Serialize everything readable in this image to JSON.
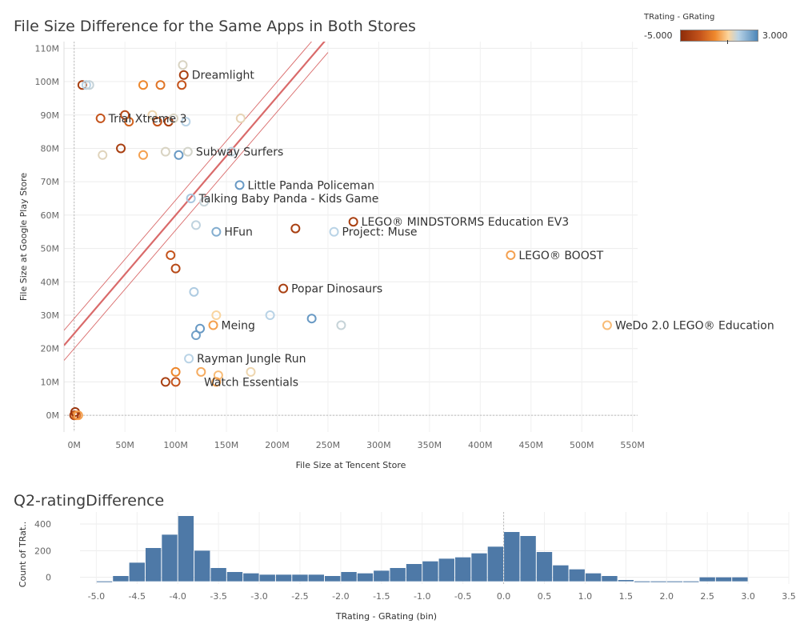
{
  "scatter": {
    "title": "File Size Difference for the Same Apps in Both Stores",
    "legend": {
      "title": "TRating - GRating",
      "min": "-5.000",
      "max": "3.000"
    }
  },
  "histogram": {
    "title": "Q2-ratingDifference"
  },
  "colors": {
    "rating_scale": [
      "#8e2c09",
      "#c4531b",
      "#f08a2e",
      "#fcd59d",
      "#b9d3e6",
      "#4d86b8"
    ],
    "trend": "#d96a6a",
    "bar": "#4e79a7"
  },
  "chart_data": [
    {
      "type": "scatter",
      "title": "File Size Difference for the Same Apps in Both Stores",
      "xlabel": "File Size at Tencent Store",
      "ylabel": "File Size at Google Play Store",
      "xlim": [
        -10,
        555
      ],
      "ylim": [
        -5,
        112
      ],
      "x_ticks": [
        0,
        50,
        100,
        150,
        200,
        250,
        300,
        350,
        400,
        450,
        500,
        550
      ],
      "x_tick_labels": [
        "0M",
        "50M",
        "100M",
        "150M",
        "200M",
        "250M",
        "300M",
        "350M",
        "400M",
        "450M",
        "500M",
        "550M"
      ],
      "y_ticks": [
        0,
        10,
        20,
        30,
        40,
        50,
        60,
        70,
        80,
        90,
        100,
        110
      ],
      "y_tick_labels": [
        "0M",
        "10M",
        "20M",
        "30M",
        "40M",
        "50M",
        "60M",
        "70M",
        "80M",
        "90M",
        "100M",
        "110M"
      ],
      "grid": true,
      "color_field": "TRating - GRating",
      "color_range": [
        -5.0,
        3.0
      ],
      "trend_line": {
        "slope": 0.355,
        "intercept": 24.5
      },
      "points": [
        {
          "x": 107,
          "y": 105,
          "rating": 0.5
        },
        {
          "x": 108,
          "y": 102,
          "rating": -4.0
        },
        {
          "x": 106,
          "y": 99,
          "rating": -3.0
        },
        {
          "x": 68,
          "y": 99,
          "rating": -1.5
        },
        {
          "x": 85,
          "y": 99,
          "rating": -2.0
        },
        {
          "x": 8,
          "y": 99,
          "rating": -4.0
        },
        {
          "x": 12,
          "y": 99,
          "rating": 1.0
        },
        {
          "x": 15,
          "y": 99,
          "rating": 0.8
        },
        {
          "x": 26,
          "y": 89,
          "rating": -3.0
        },
        {
          "x": 50,
          "y": 90,
          "rating": -3.5
        },
        {
          "x": 54,
          "y": 88,
          "rating": -2.5
        },
        {
          "x": 77,
          "y": 90,
          "rating": 0.2
        },
        {
          "x": 82,
          "y": 88,
          "rating": -3.0
        },
        {
          "x": 93,
          "y": 88,
          "rating": -4.0
        },
        {
          "x": 98,
          "y": 89,
          "rating": 0.5
        },
        {
          "x": 110,
          "y": 88,
          "rating": 1.0
        },
        {
          "x": 164,
          "y": 89,
          "rating": 0.3
        },
        {
          "x": 28,
          "y": 78,
          "rating": 0.4
        },
        {
          "x": 46,
          "y": 80,
          "rating": -4.0
        },
        {
          "x": 68,
          "y": 78,
          "rating": -1.0
        },
        {
          "x": 90,
          "y": 79,
          "rating": 0.5
        },
        {
          "x": 103,
          "y": 78,
          "rating": 2.5
        },
        {
          "x": 112,
          "y": 79,
          "rating": 0.6
        },
        {
          "x": 155,
          "y": 79,
          "rating": 0.9
        },
        {
          "x": 163,
          "y": 69,
          "rating": 2.5
        },
        {
          "x": 115,
          "y": 65,
          "rating": 1.3
        },
        {
          "x": 128,
          "y": 64,
          "rating": 0.8
        },
        {
          "x": 120,
          "y": 57,
          "rating": 0.9
        },
        {
          "x": 140,
          "y": 55,
          "rating": 2.0
        },
        {
          "x": 275,
          "y": 58,
          "rating": -4.0
        },
        {
          "x": 218,
          "y": 56,
          "rating": -4.0
        },
        {
          "x": 256,
          "y": 55,
          "rating": 1.0
        },
        {
          "x": 430,
          "y": 48,
          "rating": -1.0
        },
        {
          "x": 95,
          "y": 48,
          "rating": -3.0
        },
        {
          "x": 100,
          "y": 44,
          "rating": -3.5
        },
        {
          "x": 118,
          "y": 37,
          "rating": 1.2
        },
        {
          "x": 206,
          "y": 38,
          "rating": -4.0
        },
        {
          "x": 193,
          "y": 30,
          "rating": 1.0
        },
        {
          "x": 234,
          "y": 29,
          "rating": 2.5
        },
        {
          "x": 263,
          "y": 27,
          "rating": 0.8
        },
        {
          "x": 525,
          "y": 27,
          "rating": -0.5
        },
        {
          "x": 140,
          "y": 30,
          "rating": 0.0
        },
        {
          "x": 137,
          "y": 27,
          "rating": -1.0
        },
        {
          "x": 120,
          "y": 24,
          "rating": 2.3
        },
        {
          "x": 124,
          "y": 26,
          "rating": 2.5
        },
        {
          "x": 113,
          "y": 17,
          "rating": 1.0
        },
        {
          "x": 142,
          "y": 12,
          "rating": -0.5
        },
        {
          "x": 174,
          "y": 13,
          "rating": 0.2
        },
        {
          "x": 125,
          "y": 13,
          "rating": -0.8
        },
        {
          "x": 100,
          "y": 13,
          "rating": -1.5
        },
        {
          "x": 90,
          "y": 10,
          "rating": -4.0
        },
        {
          "x": 100,
          "y": 10,
          "rating": -3.0
        },
        {
          "x": 140,
          "y": 10,
          "rating": -1.0
        },
        {
          "x": 0,
          "y": 0,
          "rating": -4.0
        },
        {
          "x": 2,
          "y": 0,
          "rating": -2.0
        },
        {
          "x": 1,
          "y": 1,
          "rating": -4.5
        },
        {
          "x": 4,
          "y": 0,
          "rating": -1.0
        }
      ],
      "annotations": [
        {
          "label": "Dreamlight",
          "x": 108,
          "y": 102
        },
        {
          "label": "Trial Xtreme 3",
          "x": 26,
          "y": 89
        },
        {
          "label": "Subway Surfers",
          "x": 112,
          "y": 79
        },
        {
          "label": "Little Panda Policeman",
          "x": 163,
          "y": 69
        },
        {
          "label": "Talking Baby Panda - Kids Game",
          "x": 115,
          "y": 65
        },
        {
          "label": "LEGO® MINDSTORMS Education EV3",
          "x": 275,
          "y": 58
        },
        {
          "label": "HFun",
          "x": 140,
          "y": 55
        },
        {
          "label": "Project: Muse",
          "x": 256,
          "y": 55
        },
        {
          "label": "LEGO® BOOST",
          "x": 430,
          "y": 48
        },
        {
          "label": "Popar Dinosaurs",
          "x": 206,
          "y": 38
        },
        {
          "label": "Meing",
          "x": 137,
          "y": 27
        },
        {
          "label": "WeDo 2.0 LEGO® Education",
          "x": 525,
          "y": 27
        },
        {
          "label": "Rayman Jungle Run",
          "x": 113,
          "y": 17
        },
        {
          "label": "Watch Essentials",
          "x": 120,
          "y": 10
        }
      ]
    },
    {
      "type": "bar",
      "title": "Q2-ratingDifference",
      "xlabel": "TRating - GRating (bin)",
      "ylabel": "Count of TRat..",
      "bin_width": 0.2,
      "xlim": [
        -5.2,
        3.5
      ],
      "x_ticks": [
        -5.0,
        -4.5,
        -4.0,
        -3.5,
        -3.0,
        -2.5,
        -2.0,
        -1.5,
        -1.0,
        -0.5,
        0.0,
        0.5,
        1.0,
        1.5,
        2.0,
        2.5,
        3.0,
        3.5
      ],
      "y_ticks": [
        0,
        200,
        400
      ],
      "ylim": [
        -50,
        490
      ],
      "bins": [
        -5.0,
        -4.8,
        -4.6,
        -4.4,
        -4.2,
        -4.0,
        -3.8,
        -3.6,
        -3.4,
        -3.2,
        -3.0,
        -2.8,
        -2.6,
        -2.4,
        -2.2,
        -2.0,
        -1.8,
        -1.6,
        -1.4,
        -1.2,
        -1.0,
        -0.8,
        -0.6,
        -0.4,
        -0.2,
        0.0,
        0.2,
        0.4,
        0.6,
        0.8,
        1.0,
        1.2,
        1.4,
        1.6,
        1.8,
        2.0,
        2.2,
        2.4,
        2.6,
        2.8
      ],
      "values": [
        -40,
        10,
        110,
        220,
        320,
        460,
        200,
        70,
        40,
        30,
        20,
        20,
        20,
        20,
        10,
        40,
        30,
        50,
        70,
        100,
        120,
        140,
        150,
        180,
        230,
        340,
        310,
        190,
        90,
        60,
        30,
        10,
        -20,
        -40,
        -50,
        -50,
        -50,
        0,
        0,
        0
      ]
    }
  ]
}
